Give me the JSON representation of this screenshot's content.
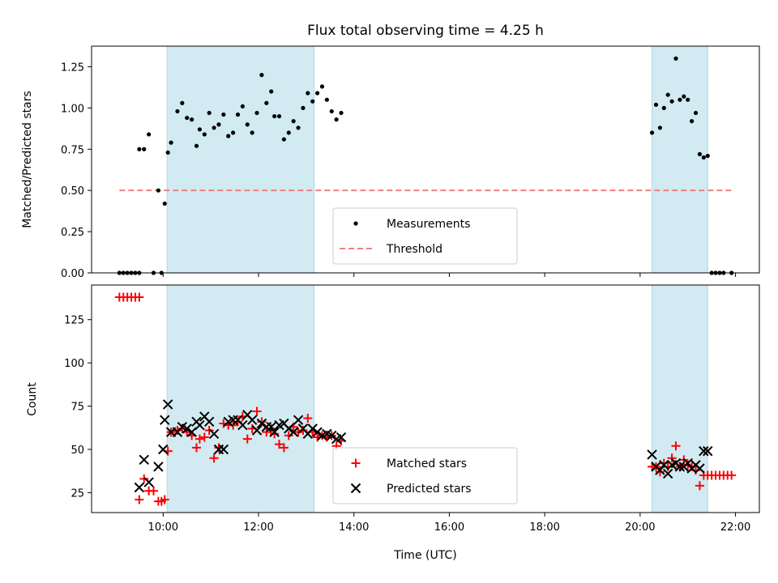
{
  "chart_data": [
    {
      "type": "scatter",
      "title": "Flux total observing time = 4.25 h",
      "ylabel": "Matched/Predicted stars",
      "xlabel": "",
      "xlim": [
        "08:30",
        "22:30"
      ],
      "ylim": [
        0,
        1.375
      ],
      "yticks": [
        "0.00",
        "0.25",
        "0.50",
        "0.75",
        "1.00",
        "1.25"
      ],
      "grid": false,
      "legend": {
        "placement": "bottom-center",
        "entries": [
          "Measurements",
          "Threshold"
        ]
      },
      "colors": {
        "measurements": "#000000",
        "threshold": "#f08080",
        "span": "#add8e6"
      },
      "shaded_intervals": [
        [
          "10:05",
          "13:10"
        ],
        [
          "20:15",
          "21:25"
        ]
      ],
      "threshold": {
        "name": "Threshold",
        "y": 0.5,
        "x_range": [
          "09:05",
          "21:55"
        ]
      },
      "series": [
        {
          "name": "Measurements",
          "points": [
            [
              "09:05",
              0
            ],
            [
              "09:10",
              0
            ],
            [
              "09:15",
              0
            ],
            [
              "09:20",
              0
            ],
            [
              "09:25",
              0
            ],
            [
              "09:30",
              0
            ],
            [
              "09:30",
              0.75
            ],
            [
              "09:36",
              0.75
            ],
            [
              "09:42",
              0.84
            ],
            [
              "09:48",
              0
            ],
            [
              "09:54",
              0.5
            ],
            [
              "09:58",
              0
            ],
            [
              "10:02",
              0.42
            ],
            [
              "10:06",
              0.73
            ],
            [
              "10:10",
              0.79
            ],
            [
              "10:18",
              0.98
            ],
            [
              "10:24",
              1.03
            ],
            [
              "10:30",
              0.94
            ],
            [
              "10:36",
              0.93
            ],
            [
              "10:42",
              0.77
            ],
            [
              "10:46",
              0.87
            ],
            [
              "10:52",
              0.84
            ],
            [
              "10:58",
              0.97
            ],
            [
              "11:04",
              0.88
            ],
            [
              "11:10",
              0.9
            ],
            [
              "11:16",
              0.96
            ],
            [
              "11:22",
              0.83
            ],
            [
              "11:28",
              0.85
            ],
            [
              "11:34",
              0.96
            ],
            [
              "11:40",
              1.01
            ],
            [
              "11:46",
              0.9
            ],
            [
              "11:52",
              0.85
            ],
            [
              "11:58",
              0.97
            ],
            [
              "12:04",
              1.2
            ],
            [
              "12:10",
              1.03
            ],
            [
              "12:16",
              1.1
            ],
            [
              "12:20",
              0.95
            ],
            [
              "12:26",
              0.95
            ],
            [
              "12:32",
              0.81
            ],
            [
              "12:38",
              0.85
            ],
            [
              "12:44",
              0.92
            ],
            [
              "12:50",
              0.88
            ],
            [
              "12:56",
              1.0
            ],
            [
              "13:02",
              1.09
            ],
            [
              "13:08",
              1.04
            ],
            [
              "13:14",
              1.09
            ],
            [
              "13:20",
              1.13
            ],
            [
              "13:26",
              1.05
            ],
            [
              "13:32",
              0.98
            ],
            [
              "13:38",
              0.93
            ],
            [
              "13:44",
              0.97
            ],
            [
              "20:15",
              0.85
            ],
            [
              "20:20",
              1.02
            ],
            [
              "20:25",
              0.88
            ],
            [
              "20:30",
              1.0
            ],
            [
              "20:35",
              1.08
            ],
            [
              "20:40",
              1.04
            ],
            [
              "20:45",
              1.3
            ],
            [
              "20:50",
              1.05
            ],
            [
              "20:55",
              1.07
            ],
            [
              "21:00",
              1.05
            ],
            [
              "21:05",
              0.92
            ],
            [
              "21:10",
              0.97
            ],
            [
              "21:15",
              0.72
            ],
            [
              "21:20",
              0.7
            ],
            [
              "21:25",
              0.71
            ],
            [
              "21:30",
              0
            ],
            [
              "21:35",
              0
            ],
            [
              "21:40",
              0
            ],
            [
              "21:45",
              0
            ],
            [
              "21:55",
              0
            ]
          ]
        }
      ]
    },
    {
      "type": "scatter",
      "title": "",
      "ylabel": "Count",
      "xlabel": "Time (UTC)",
      "xlim": [
        "08:30",
        "22:30"
      ],
      "ylim": [
        13.5,
        145
      ],
      "yticks": [
        "25",
        "50",
        "75",
        "100",
        "125"
      ],
      "xticks": [
        "10:00",
        "12:00",
        "14:00",
        "16:00",
        "18:00",
        "20:00",
        "22:00"
      ],
      "grid": false,
      "legend": {
        "placement": "bottom-center",
        "entries": [
          "Matched stars",
          "Predicted stars"
        ]
      },
      "colors": {
        "matched": "#ff0000",
        "predicted": "#000000",
        "span": "#add8e6"
      },
      "shaded_intervals": [
        [
          "10:05",
          "13:10"
        ],
        [
          "20:15",
          "21:25"
        ]
      ],
      "series": [
        {
          "name": "Matched stars",
          "marker": "plus",
          "points": [
            [
              "09:05",
              138
            ],
            [
              "09:10",
              138
            ],
            [
              "09:15",
              138
            ],
            [
              "09:20",
              138
            ],
            [
              "09:25",
              138
            ],
            [
              "09:30",
              138
            ],
            [
              "09:30",
              21
            ],
            [
              "09:36",
              33
            ],
            [
              "09:42",
              26
            ],
            [
              "09:48",
              26
            ],
            [
              "09:54",
              20
            ],
            [
              "09:58",
              20
            ],
            [
              "10:02",
              21
            ],
            [
              "10:06",
              49
            ],
            [
              "10:10",
              60
            ],
            [
              "10:18",
              61
            ],
            [
              "10:24",
              62
            ],
            [
              "10:30",
              60
            ],
            [
              "10:36",
              58
            ],
            [
              "10:42",
              51
            ],
            [
              "10:46",
              56
            ],
            [
              "10:52",
              57
            ],
            [
              "10:58",
              61
            ],
            [
              "11:04",
              45
            ],
            [
              "11:10",
              51
            ],
            [
              "11:16",
              65
            ],
            [
              "11:22",
              64
            ],
            [
              "11:28",
              64
            ],
            [
              "11:34",
              66
            ],
            [
              "11:40",
              69
            ],
            [
              "11:46",
              56
            ],
            [
              "11:52",
              62
            ],
            [
              "11:58",
              72
            ],
            [
              "12:04",
              66
            ],
            [
              "12:10",
              60
            ],
            [
              "12:16",
              62
            ],
            [
              "12:20",
              59
            ],
            [
              "12:26",
              53
            ],
            [
              "12:32",
              51
            ],
            [
              "12:38",
              58
            ],
            [
              "12:44",
              63
            ],
            [
              "12:50",
              60
            ],
            [
              "12:56",
              61
            ],
            [
              "13:02",
              68
            ],
            [
              "13:08",
              60
            ],
            [
              "13:14",
              57
            ],
            [
              "13:20",
              58
            ],
            [
              "13:26",
              57
            ],
            [
              "13:32",
              58
            ],
            [
              "13:38",
              52
            ],
            [
              "13:44",
              55
            ],
            [
              "20:15",
              40
            ],
            [
              "20:20",
              40
            ],
            [
              "20:25",
              37
            ],
            [
              "20:30",
              42
            ],
            [
              "20:35",
              40
            ],
            [
              "20:40",
              45
            ],
            [
              "20:45",
              52
            ],
            [
              "20:50",
              40
            ],
            [
              "20:55",
              44
            ],
            [
              "21:00",
              41
            ],
            [
              "21:05",
              40
            ],
            [
              "21:10",
              38
            ],
            [
              "21:15",
              29
            ],
            [
              "21:20",
              35
            ],
            [
              "21:25",
              35
            ],
            [
              "21:30",
              35
            ],
            [
              "21:35",
              35
            ],
            [
              "21:40",
              35
            ],
            [
              "21:45",
              35
            ],
            [
              "21:50",
              35
            ],
            [
              "21:55",
              35
            ]
          ]
        },
        {
          "name": "Predicted stars",
          "marker": "x",
          "points": [
            [
              "09:30",
              28
            ],
            [
              "09:36",
              44
            ],
            [
              "09:42",
              31
            ],
            [
              "09:54",
              40
            ],
            [
              "10:00",
              50
            ],
            [
              "10:02",
              67
            ],
            [
              "10:06",
              76
            ],
            [
              "10:10",
              60
            ],
            [
              "10:18",
              60
            ],
            [
              "10:24",
              63
            ],
            [
              "10:30",
              62
            ],
            [
              "10:36",
              60
            ],
            [
              "10:42",
              66
            ],
            [
              "10:46",
              64
            ],
            [
              "10:52",
              69
            ],
            [
              "10:58",
              66
            ],
            [
              "11:04",
              59
            ],
            [
              "11:10",
              50
            ],
            [
              "11:16",
              50
            ],
            [
              "11:22",
              66
            ],
            [
              "11:28",
              67
            ],
            [
              "11:34",
              67
            ],
            [
              "11:40",
              64
            ],
            [
              "11:46",
              70
            ],
            [
              "11:52",
              67
            ],
            [
              "11:58",
              61
            ],
            [
              "12:04",
              65
            ],
            [
              "12:10",
              63
            ],
            [
              "12:16",
              63
            ],
            [
              "12:20",
              60
            ],
            [
              "12:26",
              64
            ],
            [
              "12:32",
              65
            ],
            [
              "12:38",
              62
            ],
            [
              "12:44",
              60
            ],
            [
              "12:50",
              67
            ],
            [
              "12:56",
              62
            ],
            [
              "13:02",
              59
            ],
            [
              "13:08",
              62
            ],
            [
              "13:14",
              60
            ],
            [
              "13:20",
              58
            ],
            [
              "13:26",
              59
            ],
            [
              "13:32",
              58
            ],
            [
              "13:38",
              56
            ],
            [
              "13:44",
              57
            ],
            [
              "20:15",
              47
            ],
            [
              "20:20",
              40
            ],
            [
              "20:25",
              38
            ],
            [
              "20:30",
              41
            ],
            [
              "20:35",
              36
            ],
            [
              "20:40",
              41
            ],
            [
              "20:45",
              42
            ],
            [
              "20:50",
              40
            ],
            [
              "20:55",
              40
            ],
            [
              "21:00",
              42
            ],
            [
              "21:05",
              39
            ],
            [
              "21:10",
              41
            ],
            [
              "21:15",
              39
            ],
            [
              "21:20",
              49
            ],
            [
              "21:25",
              49
            ]
          ]
        }
      ]
    }
  ]
}
